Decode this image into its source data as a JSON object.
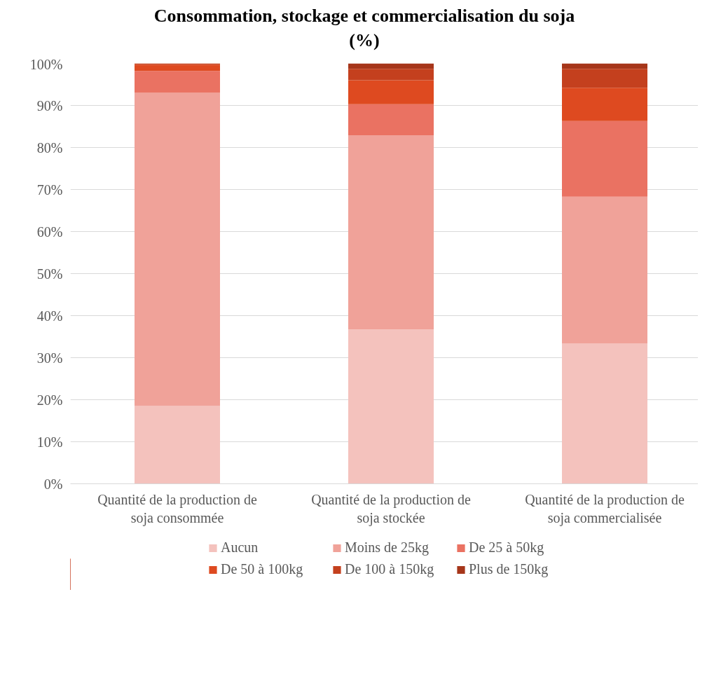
{
  "chart_data": {
    "type": "bar",
    "title": "Consommation, stockage et commercialisation du soja\n(%)",
    "stacked": true,
    "categories": [
      "Quantité de la production de soja consommée",
      "Quantité de la production de soja stockée",
      "Quantité de la production de soja commercialisée"
    ],
    "series": [
      {
        "name": "Aucun",
        "color": "#f4c2bd",
        "values": [
          18.5,
          36.7,
          33.4
        ]
      },
      {
        "name": "Moins de 25kg",
        "color": "#f0a299",
        "values": [
          74.5,
          46.2,
          34.9
        ]
      },
      {
        "name": "De 25 à 50kg",
        "color": "#ea7262",
        "values": [
          5.2,
          7.4,
          18.0
        ]
      },
      {
        "name": "De 50 à 100kg",
        "color": "#de4a20",
        "values": [
          1.5,
          5.7,
          7.9
        ]
      },
      {
        "name": "De 100 à 150kg",
        "color": "#c4401e",
        "values": [
          0.3,
          2.7,
          4.5
        ]
      },
      {
        "name": "Plus de 150kg",
        "color": "#a6361a",
        "values": [
          0,
          1.3,
          1.3
        ]
      }
    ],
    "ylim": [
      0,
      100
    ],
    "yticks": [
      {
        "value": 0,
        "label": "0%"
      },
      {
        "value": 10,
        "label": "10%"
      },
      {
        "value": 20,
        "label": "20%"
      },
      {
        "value": 30,
        "label": "30%"
      },
      {
        "value": 40,
        "label": "40%"
      },
      {
        "value": 50,
        "label": "50%"
      },
      {
        "value": 60,
        "label": "60%"
      },
      {
        "value": 70,
        "label": "70%"
      },
      {
        "value": 80,
        "label": "80%"
      },
      {
        "value": 90,
        "label": "90%"
      },
      {
        "value": 100,
        "label": "100%"
      }
    ],
    "grid": "y",
    "legend": "bottom"
  }
}
